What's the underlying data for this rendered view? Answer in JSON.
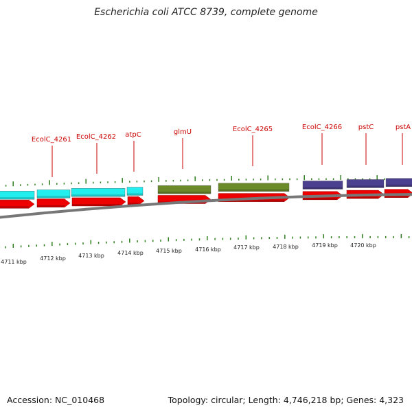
{
  "title": "Escherichia coli ATCC 8739, complete genome",
  "footer": {
    "accession": "Accession: NC_010468",
    "summary": "Topology: circular; Length: 4,746,218 bp; Genes: 4,323"
  },
  "colors": {
    "forward_arrow": "#ee0000",
    "gene_label": "#cc0000",
    "backbone": "#777777",
    "tick": "#2e7d1c",
    "cyan_feature": "#22eeee",
    "olive_feature": "#6b8a2a",
    "purple_feature": "#4b3f8f"
  },
  "gene_labels": [
    "EcolC_4261",
    "EcolC_4262",
    "atpC",
    "glmU",
    "EcolC_4265",
    "EcolC_4266",
    "pstC",
    "pstA"
  ],
  "kbp_labels": [
    "4711 kbp",
    "4712 kbp",
    "4713 kbp",
    "4714 kbp",
    "4715 kbp",
    "4716 kbp",
    "4717 kbp",
    "4718 kbp",
    "4719 kbp",
    "4720 kbp"
  ],
  "features": [
    {
      "name": "cyan-feature",
      "color": "cyan"
    },
    {
      "name": "olive-feature",
      "color": "olive"
    },
    {
      "name": "purple-feature",
      "color": "purple"
    }
  ]
}
